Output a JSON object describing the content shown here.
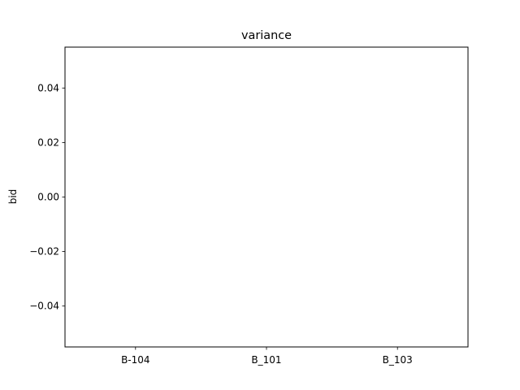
{
  "chart_data": {
    "type": "bar",
    "title": "variance",
    "xlabel": "",
    "ylabel": "bid",
    "categories": [
      "B-104",
      "B_101",
      "B_103"
    ],
    "values": [
      0,
      0,
      0
    ],
    "ylim": [
      -0.055,
      0.055
    ],
    "yticks": [
      -0.04,
      -0.02,
      0.0,
      0.02,
      0.04
    ],
    "ytick_labels": [
      "−0.04",
      "−0.02",
      "0.00",
      "0.02",
      "0.04"
    ],
    "grid": false,
    "legend": "none"
  }
}
